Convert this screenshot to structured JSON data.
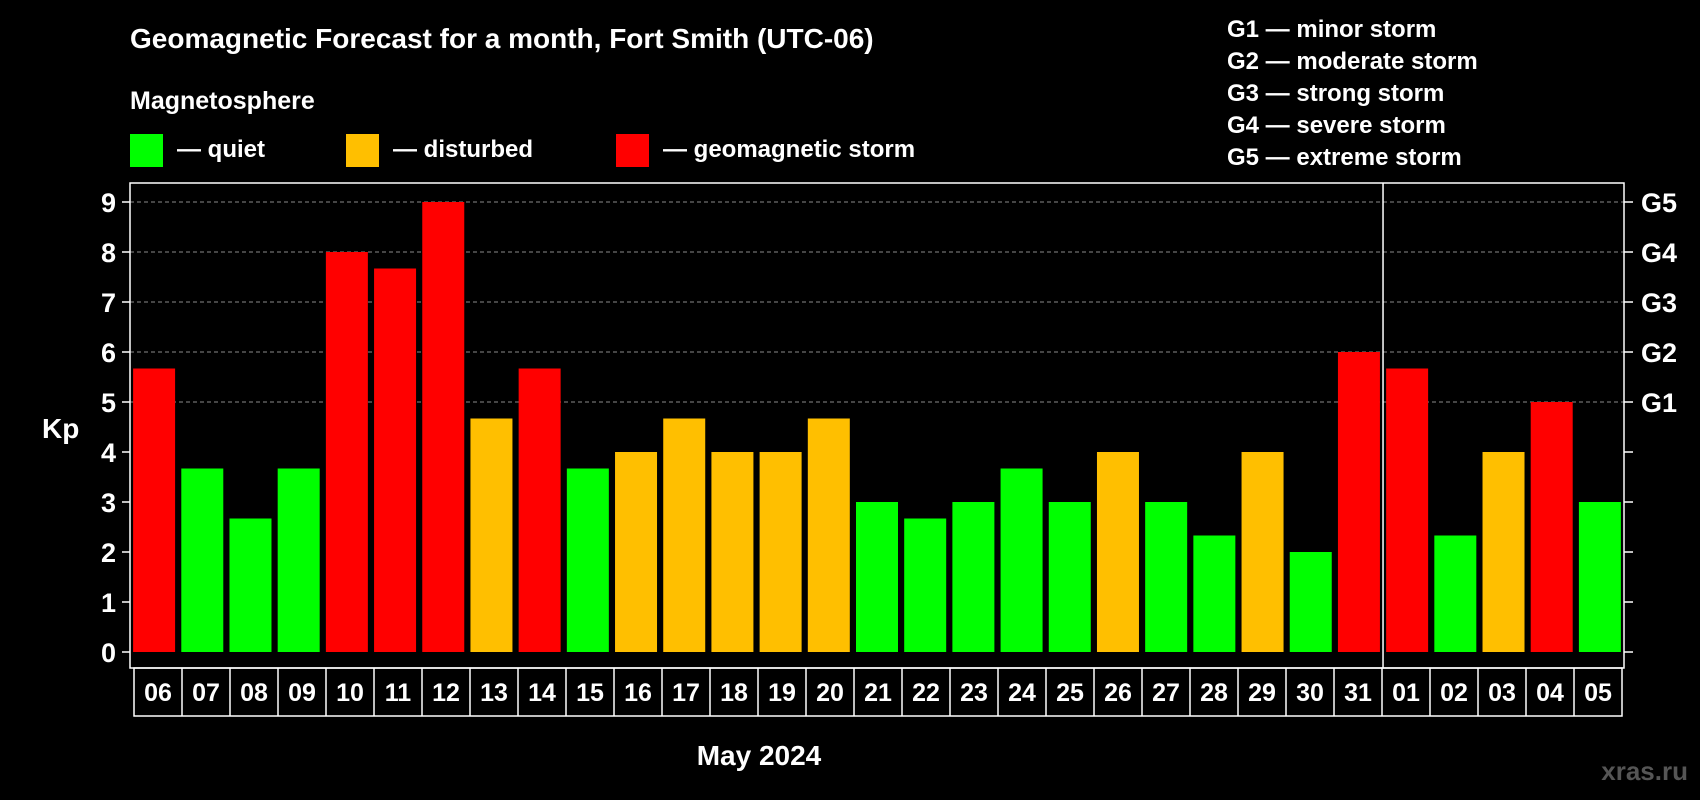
{
  "chart_data": {
    "type": "bar",
    "title": "Geomagnetic Forecast for a month, Fort Smith (UTC-06)",
    "legend": {
      "heading": "Magnetosphere",
      "items": [
        {
          "label": "— quiet",
          "color": "#00ff00"
        },
        {
          "label": "— disturbed",
          "color": "#ffbf00"
        },
        {
          "label": "— geomagnetic storm",
          "color": "#ff0000"
        }
      ]
    },
    "g_scale": [
      "G1 — minor storm",
      "G2 — moderate storm",
      "G3 — strong storm",
      "G4 — severe storm",
      "G5 — extreme storm"
    ],
    "ylabel": "Kp",
    "ylim": [
      0,
      9
    ],
    "yticks": [
      "0",
      "1",
      "2",
      "3",
      "4",
      "5",
      "6",
      "7",
      "8",
      "9"
    ],
    "right_ticks": [
      {
        "value": 5,
        "label": "G1"
      },
      {
        "value": 6,
        "label": "G2"
      },
      {
        "value": 7,
        "label": "G3"
      },
      {
        "value": 8,
        "label": "G4"
      },
      {
        "value": 9,
        "label": "G5"
      }
    ],
    "xlabel": "May 2024",
    "month_divider_after": "31",
    "categories": [
      "06",
      "07",
      "08",
      "09",
      "10",
      "11",
      "12",
      "13",
      "14",
      "15",
      "16",
      "17",
      "18",
      "19",
      "20",
      "21",
      "22",
      "23",
      "24",
      "25",
      "26",
      "27",
      "28",
      "29",
      "30",
      "31",
      "01",
      "02",
      "03",
      "04",
      "05"
    ],
    "values": [
      5.67,
      3.67,
      2.67,
      3.67,
      8,
      7.67,
      9,
      4.67,
      5.67,
      3.67,
      4,
      4.67,
      4,
      4,
      4.67,
      3,
      2.67,
      3,
      3.67,
      3,
      4,
      3,
      2.33,
      4,
      2,
      6,
      5.67,
      2.33,
      4,
      5,
      3
    ],
    "levels": [
      "storm",
      "quiet",
      "quiet",
      "quiet",
      "storm",
      "storm",
      "storm",
      "disturbed",
      "storm",
      "quiet",
      "disturbed",
      "disturbed",
      "disturbed",
      "disturbed",
      "disturbed",
      "quiet",
      "quiet",
      "quiet",
      "quiet",
      "quiet",
      "disturbed",
      "quiet",
      "quiet",
      "disturbed",
      "quiet",
      "storm",
      "storm",
      "quiet",
      "disturbed",
      "storm",
      "quiet"
    ],
    "level_colors": {
      "quiet": "#00ff00",
      "disturbed": "#ffbf00",
      "storm": "#ff0000"
    },
    "grid": true
  },
  "watermark": "xras.ru"
}
